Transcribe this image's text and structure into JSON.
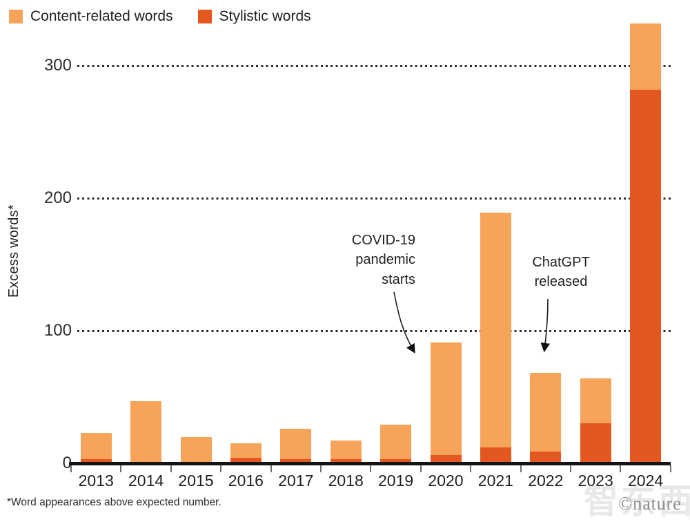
{
  "legend": {
    "items": [
      {
        "label": "Content-related words",
        "color": "#F5A45A"
      },
      {
        "label": "Stylistic words",
        "color": "#E4571E"
      }
    ]
  },
  "chart_data": {
    "type": "bar",
    "stacked": true,
    "title": "",
    "xlabel": "",
    "ylabel": "Excess words*",
    "categories": [
      "2013",
      "2014",
      "2015",
      "2016",
      "2017",
      "2018",
      "2019",
      "2020",
      "2021",
      "2022",
      "2023",
      "2024"
    ],
    "series": [
      {
        "name": "Stylistic words",
        "color": "#E4571E",
        "stack_order": "bottom",
        "values": [
          3,
          1,
          1,
          4,
          3,
          3,
          3,
          6,
          12,
          9,
          30,
          282
        ]
      },
      {
        "name": "Content-related words",
        "color": "#F5A45A",
        "stack_order": "top",
        "values": [
          20,
          46,
          19,
          11,
          23,
          14,
          26,
          85,
          177,
          59,
          34,
          50
        ]
      }
    ],
    "totals": [
      23,
      47,
      20,
      15,
      26,
      17,
      29,
      91,
      189,
      68,
      64,
      332
    ],
    "ylim": [
      0,
      345
    ],
    "yticks": [
      0,
      100,
      200,
      300
    ],
    "grid": "horizontal-dotted",
    "legend_position": "top-left"
  },
  "annotations": {
    "covid": {
      "text": "COVID-19\npandemic\nstarts"
    },
    "chatgpt": {
      "text": "ChatGPT\nreleased"
    }
  },
  "footnote": "*Word appearances above expected number.",
  "watermark": {
    "credit": "©nature",
    "ghost": "智东西"
  }
}
